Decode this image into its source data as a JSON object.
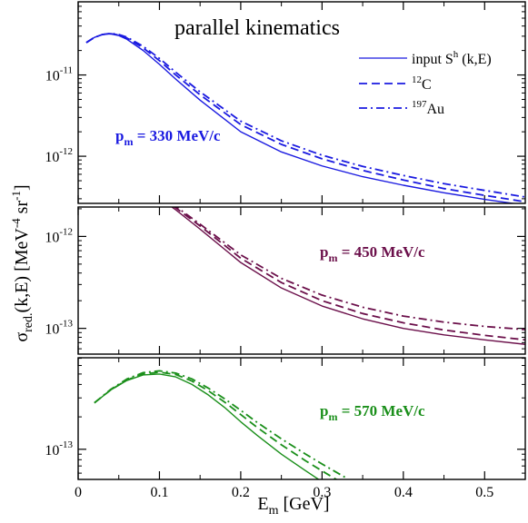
{
  "figure": {
    "title": "parallel kinematics",
    "xlabel": "E_m [GeV]",
    "xlabel_main": "E",
    "xlabel_sub": "m",
    "xlabel_rest": " [GeV]",
    "ylabel_main": "σ",
    "ylabel_sub": "red.",
    "ylabel_mid": "(k,E) [MeV",
    "ylabel_sup1": "-4",
    "ylabel_mid2": " sr",
    "ylabel_sup2": "-1",
    "ylabel_end": "]"
  },
  "legend": {
    "placement": "top-right of top panel",
    "entries": [
      {
        "label_main": "input S",
        "label_sup": "h",
        "label_rest": " (k,E)",
        "style": "solid"
      },
      {
        "label_sup": "12",
        "label_main": "C",
        "style": "dashed"
      },
      {
        "label_sup": "197",
        "label_main": "Au",
        "style": "dashdot"
      }
    ]
  },
  "chart_data": [
    {
      "type": "line",
      "annotation_main": "p",
      "annotation_sub": "m",
      "annotation_rest": " = 330 MeV/c",
      "color": "#1a1ae0",
      "xlim": [
        0,
        0.55
      ],
      "ylim_log10": [
        -12.58,
        -10.1
      ],
      "y_ticks": [
        {
          "exp": -11,
          "base": "10",
          "sup": "-11"
        },
        {
          "exp": -12,
          "base": "10",
          "sup": "-12"
        }
      ],
      "series": [
        {
          "style": "solid",
          "x": [
            0.01,
            0.02,
            0.03,
            0.04,
            0.05,
            0.06,
            0.08,
            0.1,
            0.12,
            0.15,
            0.2,
            0.25,
            0.3,
            0.35,
            0.4,
            0.45,
            0.5,
            0.55
          ],
          "y": [
            2.5e-11,
            2.9e-11,
            3.15e-11,
            3.2e-11,
            3.05e-11,
            2.75e-11,
            2e-11,
            1.35e-11,
            8.9e-12,
            4.9e-12,
            2e-12,
            1.13e-12,
            7.6e-13,
            5.6e-13,
            4.4e-13,
            3.55e-13,
            2.95e-13,
            2.5e-13
          ]
        },
        {
          "style": "dashed",
          "x": [
            0.01,
            0.02,
            0.03,
            0.04,
            0.05,
            0.06,
            0.08,
            0.1,
            0.12,
            0.15,
            0.2,
            0.25,
            0.3,
            0.35,
            0.4,
            0.45,
            0.5,
            0.55
          ],
          "y": [
            2.5e-11,
            2.9e-11,
            3.15e-11,
            3.22e-11,
            3.1e-11,
            2.85e-11,
            2.15e-11,
            1.5e-11,
            1e-11,
            5.7e-12,
            2.45e-12,
            1.4e-12,
            9.3e-13,
            6.7e-13,
            5.1e-13,
            4e-13,
            3.3e-13,
            2.75e-13
          ]
        },
        {
          "style": "dashdot",
          "x": [
            0.01,
            0.02,
            0.03,
            0.04,
            0.05,
            0.06,
            0.08,
            0.1,
            0.12,
            0.15,
            0.2,
            0.25,
            0.3,
            0.35,
            0.4,
            0.45,
            0.5,
            0.55
          ],
          "y": [
            2.5e-11,
            2.9e-11,
            3.15e-11,
            3.25e-11,
            3.15e-11,
            2.92e-11,
            2.25e-11,
            1.6e-11,
            1.08e-11,
            6.2e-12,
            2.7e-12,
            1.55e-12,
            1.03e-12,
            7.5e-13,
            5.8e-13,
            4.6e-13,
            3.8e-13,
            3.15e-13
          ]
        }
      ]
    },
    {
      "type": "line",
      "annotation_main": "p",
      "annotation_sub": "m",
      "annotation_rest": " = 450 MeV/c",
      "color": "#6b0f4a",
      "xlim": [
        0,
        0.55
      ],
      "ylim_log10": [
        -13.28,
        -11.68
      ],
      "y_ticks": [
        {
          "exp": -12,
          "base": "10",
          "sup": "-12"
        },
        {
          "exp": -13,
          "base": "10",
          "sup": "-13"
        }
      ],
      "series": [
        {
          "style": "solid",
          "x": [
            0.02,
            0.03,
            0.04,
            0.05,
            0.06,
            0.07,
            0.08,
            0.1,
            0.12,
            0.15,
            0.2,
            0.25,
            0.3,
            0.35,
            0.4,
            0.45,
            0.5,
            0.55
          ],
          "y": [
            2.4e-12,
            2.85e-12,
            3.2e-12,
            3.45e-12,
            3.55e-12,
            3.48e-12,
            3.25e-12,
            2.6e-12,
            1.95e-12,
            1.2e-12,
            5.2e-13,
            2.75e-13,
            1.75e-13,
            1.27e-13,
            1e-13,
            8.5e-14,
            7.5e-14,
            6.7e-14
          ]
        },
        {
          "style": "dashed",
          "x": [
            0.02,
            0.03,
            0.04,
            0.05,
            0.06,
            0.07,
            0.08,
            0.1,
            0.12,
            0.15,
            0.2,
            0.25,
            0.3,
            0.35,
            0.4,
            0.45,
            0.5,
            0.55
          ],
          "y": [
            2.4e-12,
            2.85e-12,
            3.2e-12,
            3.45e-12,
            3.58e-12,
            3.52e-12,
            3.32e-12,
            2.7e-12,
            2.05e-12,
            1.3e-12,
            5.8e-13,
            3.15e-13,
            2e-13,
            1.45e-13,
            1.15e-13,
            9.6e-14,
            8.4e-14,
            7.5e-14
          ]
        },
        {
          "style": "dashdot",
          "x": [
            0.02,
            0.03,
            0.04,
            0.05,
            0.06,
            0.07,
            0.08,
            0.1,
            0.12,
            0.15,
            0.2,
            0.25,
            0.3,
            0.35,
            0.4,
            0.45,
            0.5,
            0.55
          ],
          "y": [
            2.4e-12,
            2.85e-12,
            3.2e-12,
            3.45e-12,
            3.6e-12,
            3.55e-12,
            3.38e-12,
            2.78e-12,
            2.12e-12,
            1.36e-12,
            6.3e-13,
            3.5e-13,
            2.3e-13,
            1.7e-13,
            1.36e-13,
            1.17e-13,
            1.05e-13,
            9.7e-14
          ]
        }
      ]
    },
    {
      "type": "line",
      "annotation_main": "p",
      "annotation_sub": "m",
      "annotation_rest": " = 570 MeV/c",
      "color": "#1a8f1a",
      "xlim": [
        0,
        0.55
      ],
      "ylim_log10": [
        -13.28,
        -12.15
      ],
      "y_ticks": [
        {
          "exp": -13,
          "base": "10",
          "sup": "-13"
        }
      ],
      "series": [
        {
          "style": "solid",
          "x": [
            0.02,
            0.04,
            0.06,
            0.08,
            0.1,
            0.12,
            0.14,
            0.16,
            0.18,
            0.2,
            0.22,
            0.25,
            0.28,
            0.3,
            0.33
          ],
          "y": [
            2.7e-13,
            3.55e-13,
            4.35e-13,
            4.9e-13,
            5e-13,
            4.7e-13,
            4e-13,
            3.2e-13,
            2.45e-13,
            1.8e-13,
            1.35e-13,
            9e-14,
            6.3e-14,
            5e-14,
            3.6e-14
          ]
        },
        {
          "style": "dashed",
          "x": [
            0.02,
            0.04,
            0.06,
            0.08,
            0.1,
            0.12,
            0.14,
            0.16,
            0.18,
            0.2,
            0.22,
            0.25,
            0.28,
            0.3,
            0.33
          ],
          "y": [
            2.7e-13,
            3.55e-13,
            4.4e-13,
            5e-13,
            5.2e-13,
            4.95e-13,
            4.3e-13,
            3.5e-13,
            2.75e-13,
            2.1e-13,
            1.6e-13,
            1.1e-13,
            7.8e-14,
            6.3e-14,
            4.6e-14
          ]
        },
        {
          "style": "dashdot",
          "x": [
            0.02,
            0.04,
            0.06,
            0.08,
            0.1,
            0.12,
            0.14,
            0.16,
            0.18,
            0.2,
            0.22,
            0.25,
            0.28,
            0.3,
            0.33
          ],
          "y": [
            2.7e-13,
            3.6e-13,
            4.5e-13,
            5.15e-13,
            5.35e-13,
            5.1e-13,
            4.5e-13,
            3.7e-13,
            2.95e-13,
            2.3e-13,
            1.78e-13,
            1.25e-13,
            9e-14,
            7.3e-14,
            5.4e-14
          ]
        }
      ]
    }
  ],
  "x_ticks": [
    {
      "value": 0,
      "label": "0"
    },
    {
      "value": 0.1,
      "label": "0.1"
    },
    {
      "value": 0.2,
      "label": "0.2"
    },
    {
      "value": 0.3,
      "label": "0.3"
    },
    {
      "value": 0.4,
      "label": "0.4"
    },
    {
      "value": 0.5,
      "label": "0.5"
    }
  ]
}
